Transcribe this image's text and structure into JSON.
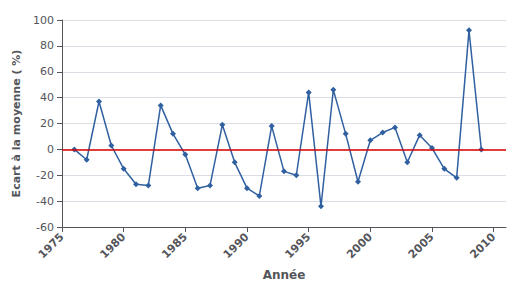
{
  "chart_data": {
    "type": "line",
    "x": [
      1976,
      1977,
      1978,
      1979,
      1980,
      1981,
      1982,
      1983,
      1984,
      1985,
      1986,
      1987,
      1988,
      1989,
      1990,
      1991,
      1992,
      1993,
      1994,
      1995,
      1996,
      1997,
      1998,
      1999,
      2000,
      2001,
      2002,
      2003,
      2004,
      2005,
      2006,
      2007,
      2008,
      2009
    ],
    "values": [
      0,
      -8,
      37,
      3,
      -15,
      -27,
      -28,
      34,
      12,
      -4,
      -30,
      -28,
      19,
      -10,
      -30,
      -36,
      18,
      -17,
      -20,
      44,
      -44,
      46,
      12,
      -25,
      7,
      13,
      17,
      -10,
      11,
      1,
      -15,
      -22,
      92,
      0
    ],
    "color": "#3060a0",
    "marker": "diamond",
    "xlabel": "Année",
    "ylabel": "Ecart à la moyenne ( %)",
    "xlim": [
      1975,
      2011
    ],
    "xticks": [
      1975,
      1980,
      1985,
      1990,
      1995,
      2000,
      2005,
      2010
    ],
    "ylim": [
      -60,
      100
    ],
    "yticks": [
      -60,
      -40,
      -20,
      0,
      20,
      40,
      60,
      80,
      100
    ],
    "grid": true,
    "hlines": [
      {
        "y": 0,
        "color": "#dd0000"
      }
    ]
  }
}
